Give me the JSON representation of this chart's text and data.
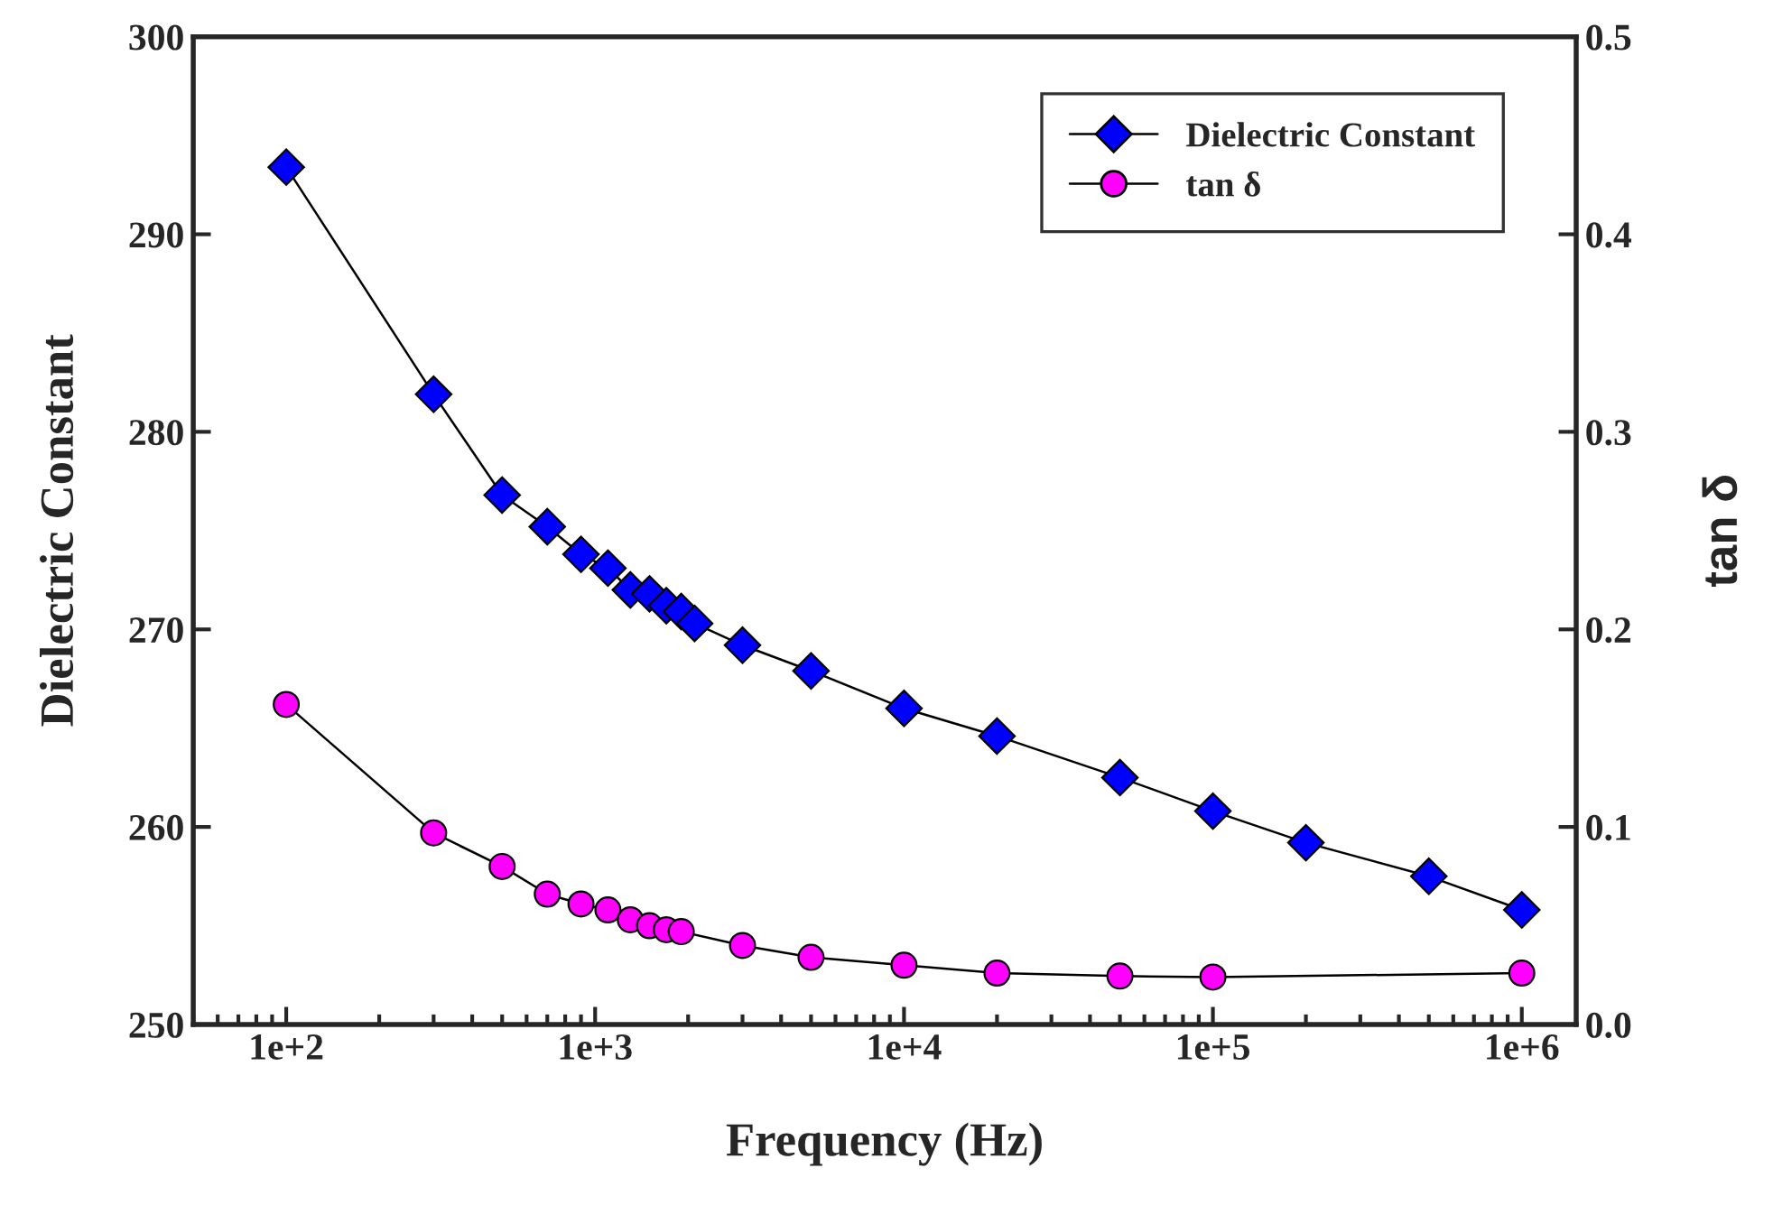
{
  "chart_data": {
    "type": "line",
    "xlabel": "Frequency (Hz)",
    "ylabel": "Dielectric Constant",
    "y2label": "tan δ",
    "log": "x",
    "xlim": [
      50,
      1500000
    ],
    "xticks": [
      {
        "value": 100,
        "label": "1e+2"
      },
      {
        "value": 1000,
        "label": "1e+3"
      },
      {
        "value": 10000,
        "label": "1e+4"
      },
      {
        "value": 100000,
        "label": "1e+5"
      },
      {
        "value": 1000000,
        "label": "1e+6"
      }
    ],
    "ylim": [
      250,
      300
    ],
    "yticks": [
      250,
      260,
      270,
      280,
      290,
      300
    ],
    "y2lim": [
      0.0,
      0.5
    ],
    "y2ticks": [
      {
        "value": 0.0,
        "label": "0.0"
      },
      0.1,
      0.2,
      0.3,
      0.4,
      0.5
    ],
    "legend": "top right",
    "grid": false,
    "line_style": "solid",
    "series": [
      {
        "name": "Dielectric Constant",
        "color": "#0000ff",
        "marker": "diamond",
        "x": [
          100,
          300,
          500,
          700,
          900,
          1100,
          1300,
          1500,
          1700,
          1900,
          2100,
          3000,
          5000,
          10000,
          20000,
          50000,
          100000,
          200000,
          500000,
          1000000
        ],
        "values": [
          293.4,
          281.9,
          276.8,
          275.2,
          273.8,
          273.1,
          272.0,
          271.8,
          271.2,
          270.9,
          270.3,
          269.2,
          267.9,
          266.0,
          264.6,
          262.5,
          260.8,
          259.2,
          257.5,
          255.8
        ]
      },
      {
        "name": "tan δ",
        "color": "#ff00ff",
        "marker": "circle",
        "axis": "y2",
        "x": [
          100,
          300,
          500,
          700,
          900,
          1100,
          1300,
          1500,
          1700,
          1900,
          3000,
          5000,
          10000,
          20000,
          50000,
          100000,
          1000000
        ],
        "values": [
          0.162,
          0.097,
          0.08,
          0.066,
          0.061,
          0.058,
          0.053,
          0.05,
          0.048,
          0.047,
          0.04,
          0.034,
          0.03,
          0.026,
          0.0245,
          0.024,
          0.026
        ]
      }
    ]
  }
}
